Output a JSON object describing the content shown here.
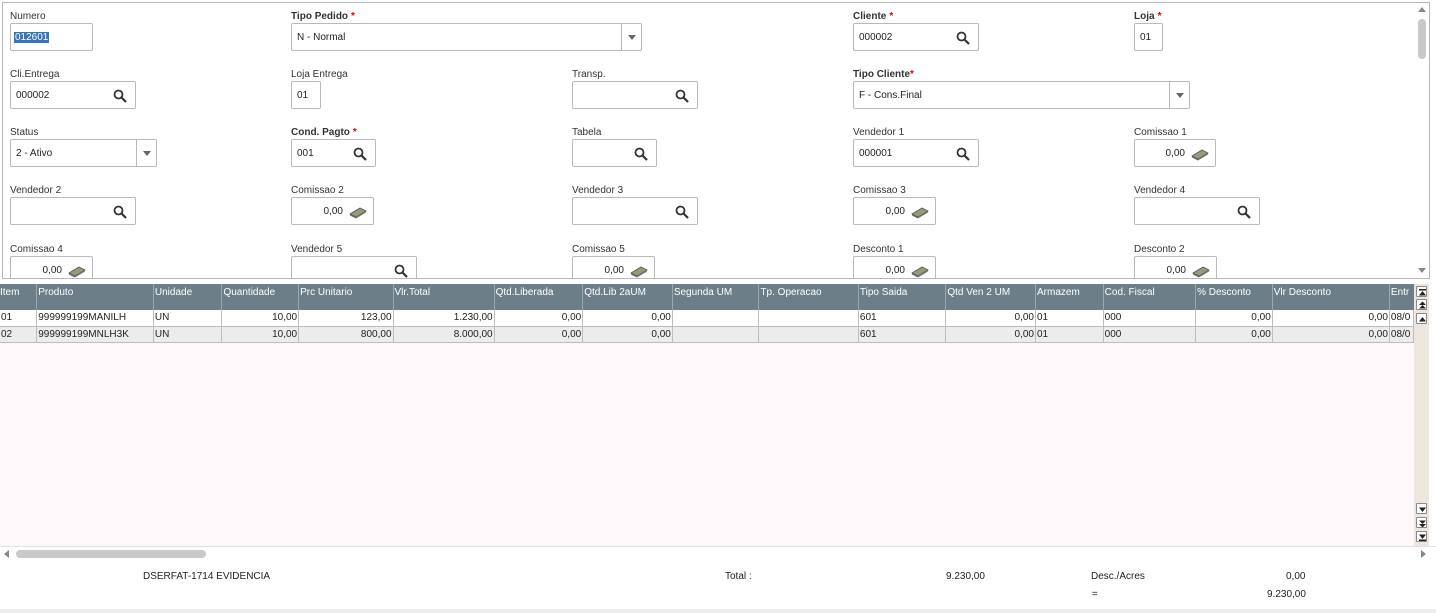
{
  "form": {
    "numero": {
      "label": "Numero",
      "value": "012601"
    },
    "tipo_pedido": {
      "label": "Tipo Pedido",
      "value": "N - Normal"
    },
    "cliente": {
      "label": "Cliente",
      "value": "000002"
    },
    "loja": {
      "label": "Loja",
      "value": "01"
    },
    "cli_entrega": {
      "label": "Cli.Entrega",
      "value": "000002"
    },
    "loja_entrega": {
      "label": "Loja Entrega",
      "value": "01"
    },
    "transp": {
      "label": "Transp.",
      "value": ""
    },
    "tipo_cliente": {
      "label": "Tipo Cliente",
      "value": "F - Cons.Final"
    },
    "status": {
      "label": "Status",
      "value": "2 - Ativo"
    },
    "cond_pagto": {
      "label": "Cond. Pagto",
      "value": "001"
    },
    "tabela": {
      "label": "Tabela",
      "value": ""
    },
    "vendedor1": {
      "label": "Vendedor 1",
      "value": "000001"
    },
    "comissao1": {
      "label": "Comissao 1",
      "value": "0,00"
    },
    "vendedor2": {
      "label": "Vendedor 2",
      "value": ""
    },
    "comissao2": {
      "label": "Comissao 2",
      "value": "0,00"
    },
    "vendedor3": {
      "label": "Vendedor 3",
      "value": ""
    },
    "comissao3": {
      "label": "Comissao 3",
      "value": "0,00"
    },
    "vendedor4": {
      "label": "Vendedor 4",
      "value": ""
    },
    "comissao4": {
      "label": "Comissao 4",
      "value": "0,00"
    },
    "vendedor5": {
      "label": "Vendedor 5",
      "value": ""
    },
    "comissao5": {
      "label": "Comissao 5",
      "value": "0,00"
    },
    "desconto1": {
      "label": "Desconto 1",
      "value": "0,00"
    },
    "desconto2": {
      "label": "Desconto 2",
      "value": "0,00"
    },
    "required_mark": "*"
  },
  "grid": {
    "columns": [
      "Item",
      "Produto",
      "Unidade",
      "Quantidade",
      "Prc Unitario",
      "Vlr.Total",
      "Qtd.Liberada",
      "Qtd.Lib 2aUM",
      "Segunda UM",
      "Tp. Operacao",
      "Tipo Saida",
      "Qtd Ven 2 UM",
      "Armazem",
      "Cod. Fiscal",
      "% Desconto",
      "Vlr Desconto",
      "Entr"
    ],
    "rows": [
      [
        "01",
        "999999199MANILH",
        "UN",
        "10,00",
        "123,00",
        "1.230,00",
        "0,00",
        "0,00",
        "",
        "",
        "601",
        "0,00",
        "01",
        "000",
        "0,00",
        "0,00",
        "08/0"
      ],
      [
        "02",
        "999999199MNLH3K",
        "UN",
        "10,00",
        "800,00",
        "8.000,00",
        "0,00",
        "0,00",
        "",
        "",
        "601",
        "0,00",
        "01",
        "000",
        "0,00",
        "0,00",
        "08/0"
      ]
    ]
  },
  "footer": {
    "description": "DSERFAT-1714 EVIDENCIA",
    "total_label": "Total :",
    "total_value": "9.230,00",
    "desc_label": "Desc./Acres",
    "desc_value": "0,00",
    "equals_label": "=",
    "net_value": "9.230,00"
  },
  "icons": {
    "lookup": "search-icon",
    "calculator": "calculator-icon",
    "dropdown": "chevron-down-icon"
  },
  "colors": {
    "header_bg": "#6c7f89",
    "selection": "#3874b8",
    "required": "#d60000",
    "grid_bg": "#fdf7fa"
  }
}
